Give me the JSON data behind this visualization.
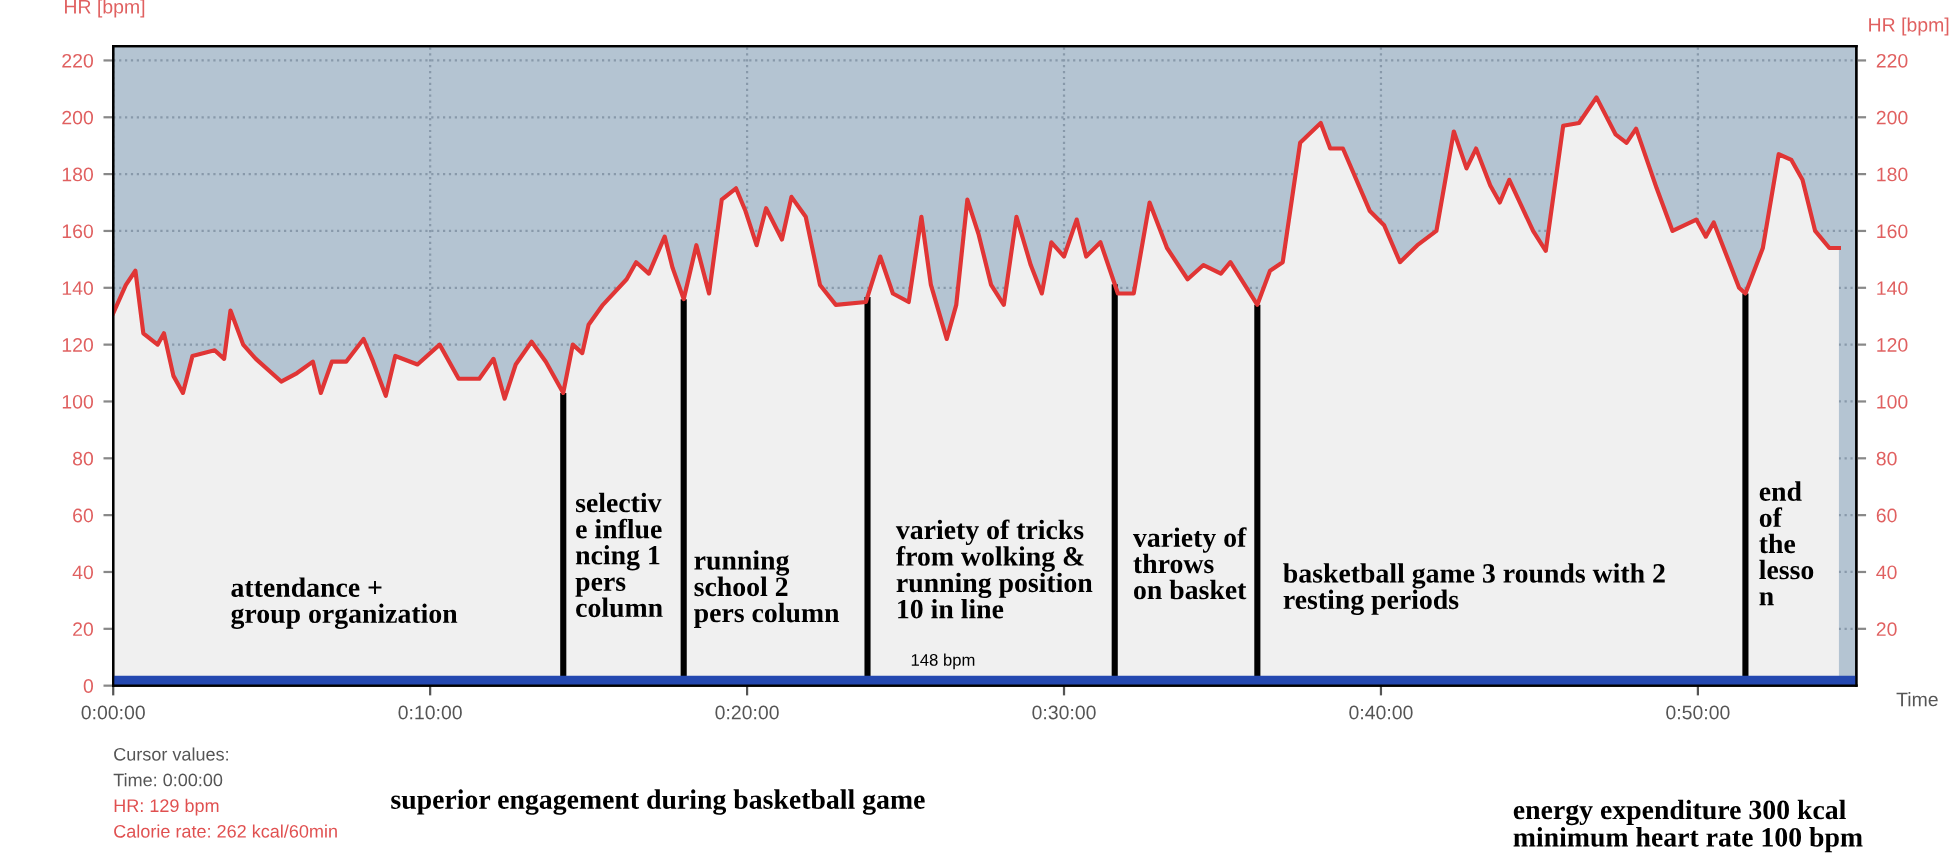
{
  "chart_data": {
    "type": "area",
    "x": [
      0,
      0.4,
      0.7,
      0.95,
      1.4,
      1.6,
      1.9,
      2.2,
      2.5,
      3.2,
      3.5,
      3.7,
      4.1,
      4.5,
      5.3,
      5.8,
      6.3,
      6.55,
      6.9,
      7.35,
      7.9,
      8.2,
      8.6,
      8.9,
      9.6,
      10.3,
      10.9,
      11.55,
      12.0,
      12.35,
      12.7,
      13.2,
      13.65,
      14.2,
      14.5,
      14.8,
      15.0,
      15.45,
      16.2,
      16.5,
      16.9,
      17.4,
      17.65,
      18.0,
      18.4,
      18.8,
      19.2,
      19.65,
      19.95,
      20.3,
      20.6,
      21.1,
      21.4,
      21.85,
      22.3,
      22.8,
      23.75,
      24.2,
      24.6,
      25.1,
      25.5,
      25.8,
      26.3,
      26.6,
      26.95,
      27.3,
      27.7,
      28.1,
      28.5,
      28.95,
      29.3,
      29.6,
      30.0,
      30.4,
      30.7,
      31.15,
      31.7,
      32.2,
      32.7,
      33.25,
      33.9,
      34.4,
      34.95,
      35.25,
      36.1,
      36.5,
      36.9,
      37.45,
      38.1,
      38.4,
      38.8,
      39.65,
      40.1,
      40.6,
      41.15,
      41.75,
      42.3,
      42.7,
      43.0,
      43.45,
      43.75,
      44.05,
      44.8,
      45.2,
      45.75,
      46.25,
      46.8,
      47.4,
      47.75,
      48.05,
      48.7,
      49.2,
      49.95,
      50.25,
      50.5,
      51.3,
      51.5,
      52.05,
      52.55,
      52.95,
      53.3,
      53.7,
      54.15,
      54.45
    ],
    "series": [
      {
        "color": "#e03535",
        "values": [
          131,
          141,
          146,
          124,
          120,
          124,
          109,
          103,
          116,
          118,
          115,
          132,
          120,
          115,
          107,
          110,
          114,
          103,
          114,
          114,
          122,
          114,
          102,
          116,
          113,
          120,
          108,
          108,
          115,
          101,
          113,
          121,
          114,
          103,
          120,
          117,
          127,
          134,
          143,
          149,
          145,
          158,
          147,
          136,
          155,
          138,
          171,
          175,
          167,
          155,
          168,
          157,
          172,
          165,
          141,
          134,
          135,
          151,
          138,
          135,
          165,
          141,
          122,
          134,
          171,
          159,
          141,
          134,
          165,
          148,
          138,
          156,
          151,
          164,
          151,
          156,
          138,
          138,
          170,
          154,
          143,
          148,
          145,
          149,
          134,
          146,
          149,
          191,
          198,
          189,
          189,
          167,
          162,
          149,
          155,
          160,
          195,
          182,
          189,
          176,
          170,
          178,
          160,
          153,
          197,
          198,
          207,
          194,
          191,
          196,
          175,
          160,
          164,
          158,
          163,
          140,
          138,
          154,
          187,
          185,
          178,
          160,
          154,
          154
        ]
      }
    ],
    "xlim": [
      0,
      55
    ],
    "xticks": [
      {
        "value": 0,
        "label": "0:00:00"
      },
      {
        "value": 10,
        "label": "0:10:00"
      },
      {
        "value": 20,
        "label": "0:20:00"
      },
      {
        "value": 30,
        "label": "0:30:00"
      },
      {
        "value": 40,
        "label": "0:40:00"
      },
      {
        "value": 50,
        "label": "0:50:00"
      }
    ],
    "ylim": [
      0,
      225
    ],
    "yticks": [
      0,
      20,
      40,
      60,
      80,
      100,
      120,
      140,
      160,
      180,
      200,
      220
    ],
    "y2lim": [
      0,
      225
    ],
    "y2ticks": [
      20,
      40,
      60,
      80,
      100,
      120,
      140,
      160,
      180,
      200,
      220
    ],
    "xlabel": "Time",
    "ylabel": "HR [bpm]",
    "y2label": "HR [bpm]",
    "grid": true,
    "ref_lines": [
      {
        "axis": "x",
        "value": 14.2,
        "color": "#000000"
      },
      {
        "axis": "x",
        "value": 18.0,
        "color": "#000000"
      },
      {
        "axis": "x",
        "value": 23.8,
        "color": "#000000"
      },
      {
        "axis": "x",
        "value": 31.6,
        "color": "#000000"
      },
      {
        "axis": "x",
        "value": 36.1,
        "color": "#000000"
      },
      {
        "axis": "x",
        "value": 51.5,
        "color": "#000000"
      }
    ],
    "bands": [
      {
        "axis": "y",
        "from": 0,
        "to": 225,
        "color": "#b4c4d2"
      },
      {
        "axis": "y",
        "from": 0,
        "to": 3.5,
        "color": "#2448b0"
      }
    ],
    "annotations": [
      "attendance +\ngroup organization",
      "selectiv\ne influe\nncing 1\npers\ncolumn",
      "running\nschool 2\npers column",
      "variety of tricks\nfrom wolking &\nrunning position\n10 in line",
      "variety of\nthrows\non basket",
      "basketball game 3 rounds with 2\nresting periods",
      "end\nof\nthe\nlesso\nn",
      "148 bpm",
      "Cursor values:",
      "Time: 0:00:00",
      "HR: 129 bpm",
      "Calorie rate: 262 kcal/60min",
      "superior engagement during basketball game",
      "energy expenditure 300 kcal\nminimum heart rate 100 bpm"
    ]
  }
}
